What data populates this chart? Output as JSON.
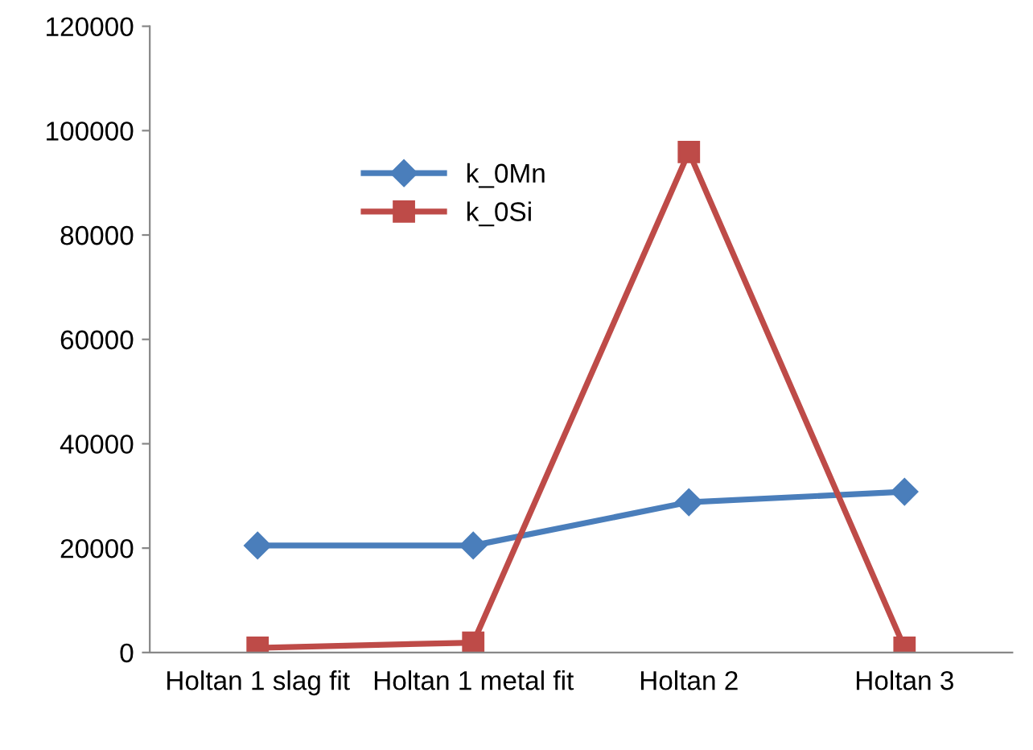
{
  "chart_data": {
    "type": "line",
    "categories": [
      "Holtan 1 slag fit",
      "Holtan 1 metal fit",
      "Holtan 2",
      "Holtan 3"
    ],
    "series": [
      {
        "name": "k_0Mn",
        "color": "#4a7ebb",
        "marker": "diamond",
        "values": [
          20500,
          20500,
          28800,
          30800
        ]
      },
      {
        "name": "k_0Si",
        "color": "#be4b48",
        "marker": "square",
        "values": [
          900,
          1900,
          95900,
          900
        ]
      }
    ],
    "ylim": [
      0,
      120000
    ],
    "yticks": [
      0,
      20000,
      40000,
      60000,
      80000,
      100000,
      120000
    ],
    "grid": false,
    "legend": "top left",
    "line_style": "solid"
  }
}
